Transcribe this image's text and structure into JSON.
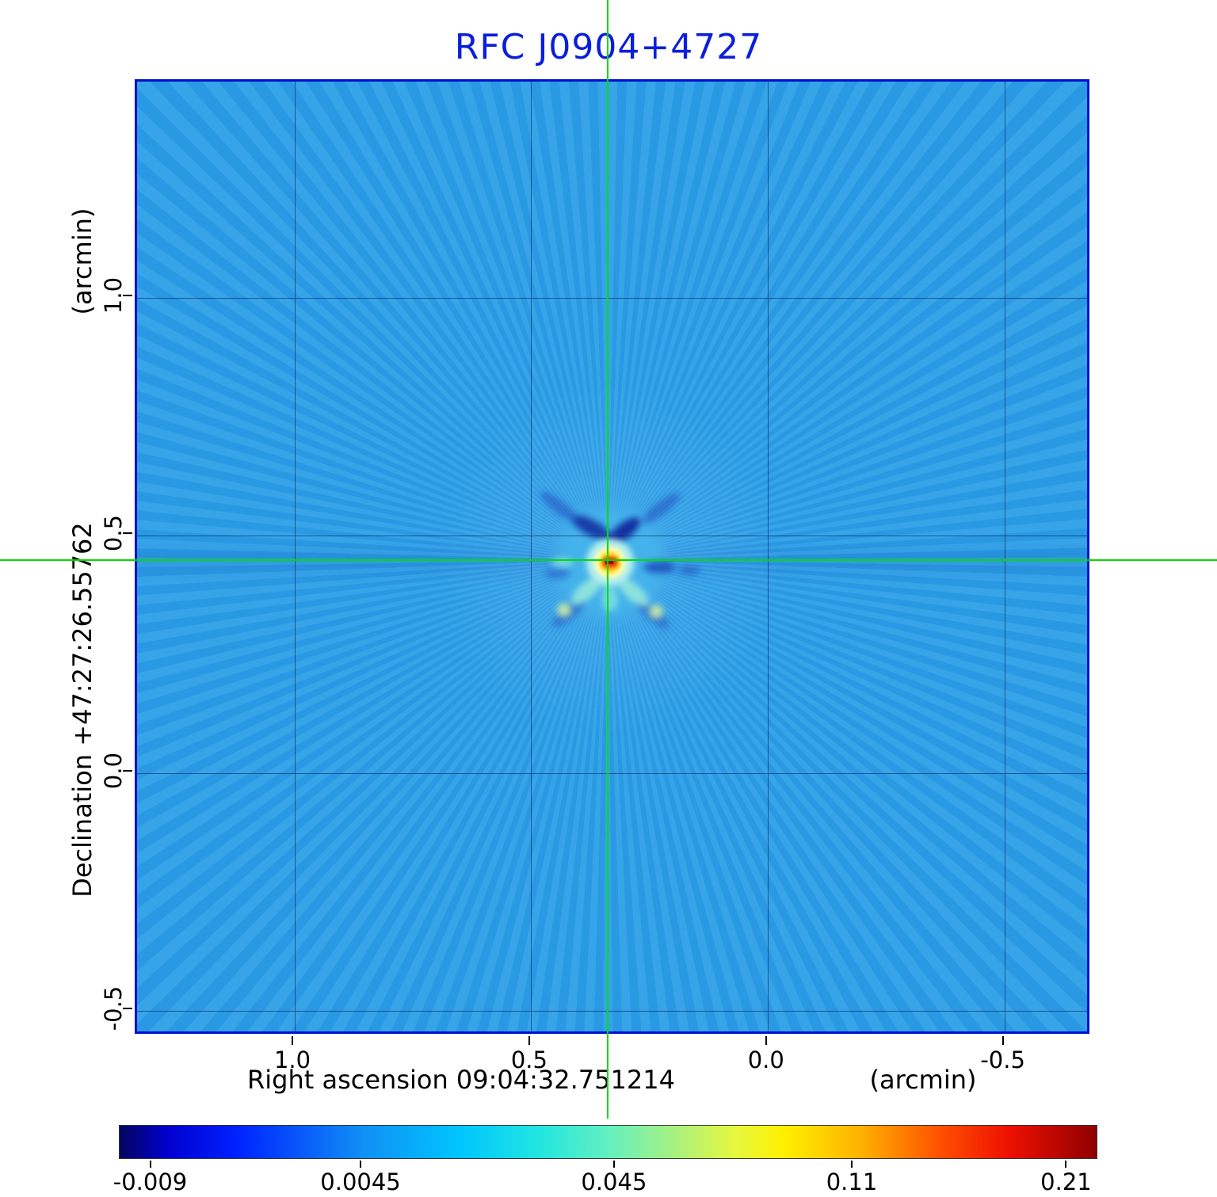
{
  "title": "RFC J0904+4727",
  "axes": {
    "dec_label": "Declination  +47:27:26.55762",
    "dec_unit": "(arcmin)",
    "ra_label": "Right ascension  09:04:32.751214",
    "ra_unit": "(arcmin)"
  },
  "chart_data": {
    "type": "heatmap",
    "title": "RFC J0904+4727",
    "xlabel": "Right ascension 09:04:32.751214 (arcmin)",
    "ylabel": "Declination +47:27:26.55762 (arcmin)",
    "x_range": [
      1.333,
      -0.683
    ],
    "y_range": [
      -0.553,
      1.455
    ],
    "x_ticks": [
      {
        "value": 1.0,
        "label": "1.0"
      },
      {
        "value": 0.5,
        "label": "0.5"
      },
      {
        "value": 0.0,
        "label": "0.0"
      },
      {
        "value": -0.5,
        "label": "-0.5"
      }
    ],
    "y_ticks": [
      {
        "value": 1.0,
        "label": "1.0"
      },
      {
        "value": 0.5,
        "label": "0.5"
      },
      {
        "value": 0.0,
        "label": "0.0"
      },
      {
        "value": -0.5,
        "label": "-0.5"
      }
    ],
    "grid": true,
    "source": {
      "x_arcmin": 0.334,
      "y_arcmin": 0.444,
      "peak": 0.21
    },
    "background_level": 0.0045,
    "colorbar": {
      "ticks": [
        {
          "label": "-0.009",
          "pos": 0.032
        },
        {
          "label": "0.0045",
          "pos": 0.247
        },
        {
          "label": "0.045",
          "pos": 0.506
        },
        {
          "label": "0.11",
          "pos": 0.749
        },
        {
          "label": "0.21",
          "pos": 0.968
        }
      ],
      "gradient_stops": [
        [
          0,
          "#050560"
        ],
        [
          5,
          "#0000d0"
        ],
        [
          12,
          "#0022ff"
        ],
        [
          25,
          "#1190f5"
        ],
        [
          35,
          "#00c6ff"
        ],
        [
          43,
          "#22e6e0"
        ],
        [
          50,
          "#63f0c0"
        ],
        [
          57,
          "#aaf07e"
        ],
        [
          63,
          "#e6f840"
        ],
        [
          68,
          "#fff000"
        ],
        [
          76,
          "#ffb000"
        ],
        [
          84,
          "#ff5000"
        ],
        [
          91,
          "#ee1000"
        ],
        [
          100,
          "#8f0000"
        ]
      ]
    },
    "colors": {
      "sky": "#2b9fe7",
      "frame": "#0010cf",
      "title": "#0a1edb",
      "crosshair": "#00dd00",
      "grid": "#12124a"
    }
  }
}
